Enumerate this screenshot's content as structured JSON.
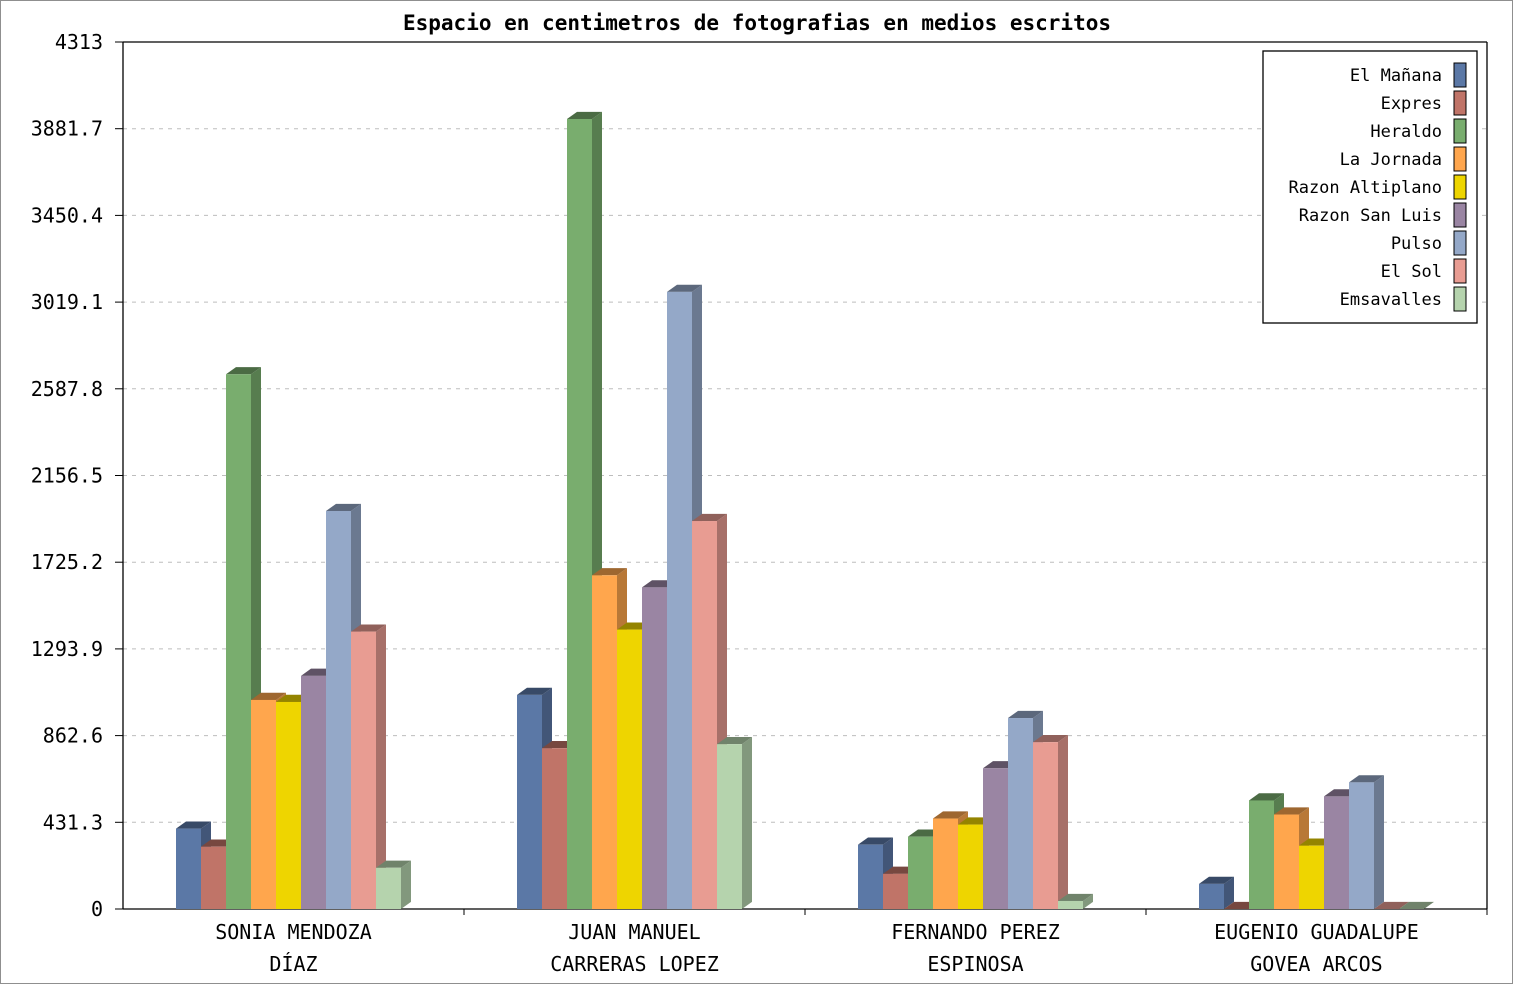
{
  "chart_data": {
    "type": "bar",
    "title": "Espacio en centimetros de fotografias en medios escritos",
    "xlabel": "",
    "ylabel": "",
    "ylim": [
      0,
      4313
    ],
    "yticks": [
      "0",
      "431.3",
      "862.6",
      "1293.9",
      "1725.2",
      "2156.5",
      "2587.8",
      "3019.1",
      "3450.4",
      "3881.7",
      "4313"
    ],
    "grid": true,
    "legend_position": "top-right",
    "style": "3d-bars",
    "categories": [
      [
        "SONIA MENDOZA",
        "DÍAZ"
      ],
      [
        "JUAN MANUEL",
        "CARRERAS LOPEZ"
      ],
      [
        "FERNANDO PEREZ",
        "ESPINOSA"
      ],
      [
        "EUGENIO GUADALUPE",
        "GOVEA ARCOS"
      ]
    ],
    "series": [
      {
        "name": "El Mañana",
        "color": "#5b78a6",
        "values": [
          400,
          1065,
          320,
          125
        ]
      },
      {
        "name": "Expres",
        "color": "#c07468",
        "values": [
          310,
          800,
          175,
          0
        ]
      },
      {
        "name": "Heraldo",
        "color": "#79ad6e",
        "values": [
          2660,
          3930,
          360,
          540
        ]
      },
      {
        "name": "La Jornada",
        "color": "#ffa64d",
        "values": [
          1040,
          1660,
          450,
          470
        ]
      },
      {
        "name": "Razon Altiplano",
        "color": "#eed500",
        "values": [
          1030,
          1390,
          420,
          315
        ]
      },
      {
        "name": "Razon San Luis",
        "color": "#9a85a3",
        "values": [
          1160,
          1600,
          700,
          560
        ]
      },
      {
        "name": "Pulso",
        "color": "#94a8c8",
        "values": [
          1980,
          3070,
          950,
          630
        ]
      },
      {
        "name": "El Sol",
        "color": "#e89c92",
        "values": [
          1380,
          1930,
          830,
          0
        ]
      },
      {
        "name": "Emsavalles",
        "color": "#b5d3ad",
        "values": [
          205,
          820,
          40,
          0
        ]
      }
    ]
  }
}
